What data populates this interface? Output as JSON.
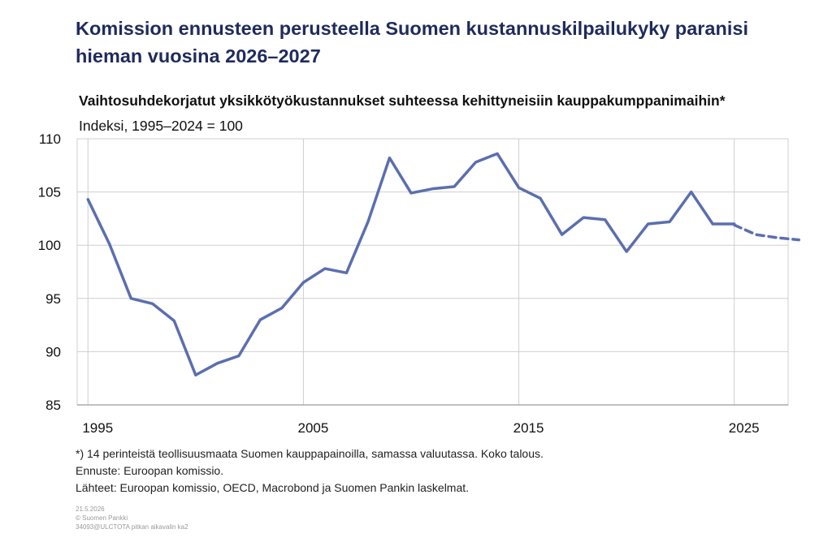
{
  "title": "Komission ennusteen perusteella Suomen kustannuskilpailukyky paranisi hieman vuosina 2026–2027",
  "chart_data": {
    "type": "line",
    "title": "Vaihtosuhdekorjatut yksikkötyökustannukset suhteessa kehittyneisiin kauppakumppanimaihin*",
    "subtitle": "Indeksi, 1995–2024 = 100",
    "xlabel": "",
    "ylabel": "",
    "xlim": [
      1994.5,
      2027.5
    ],
    "ylim": [
      85,
      110
    ],
    "x_ticks": [
      1995,
      2005,
      2015,
      2025
    ],
    "y_ticks": [
      85,
      90,
      95,
      100,
      105,
      110
    ],
    "grid": true,
    "line_color": "#5b6fae",
    "series": [
      {
        "style": "solid",
        "x": [
          1995,
          1996,
          1997,
          1998,
          1999,
          2000,
          2001,
          2002,
          2003,
          2004,
          2005,
          2006,
          2007,
          2008,
          2009,
          2010,
          2011,
          2012,
          2013,
          2014,
          2015,
          2016,
          2017,
          2018,
          2019,
          2020,
          2021,
          2022,
          2023,
          2024,
          2025
        ],
        "y": [
          104.3,
          100.1,
          95.0,
          94.5,
          92.9,
          87.8,
          88.9,
          89.6,
          93.0,
          94.1,
          96.5,
          97.8,
          97.4,
          102.2,
          108.2,
          104.9,
          105.3,
          105.5,
          107.8,
          108.6,
          105.4,
          104.4,
          101.0,
          102.6,
          102.4,
          99.4,
          102.0,
          102.2,
          105.0,
          102.0,
          102.0
        ]
      },
      {
        "style": "dashed",
        "x": [
          2025,
          2026,
          2027,
          2028
        ],
        "y": [
          101.9,
          101.0,
          100.7,
          100.5
        ]
      }
    ]
  },
  "footnotes": [
    "*) 14 perinteistä teollisuusmaata Suomen kauppapainoilla, samassa valuutassa. Koko talous.",
    "Ennuste: Euroopan komissio.",
    "Lähteet: Euroopan komissio, OECD, Macrobond ja Suomen Pankin laskelmat."
  ],
  "meta": [
    "21.5.2026",
    "© Suomen Pankki",
    "34093@ULCTOTA pitkan aikavalin ka2"
  ]
}
